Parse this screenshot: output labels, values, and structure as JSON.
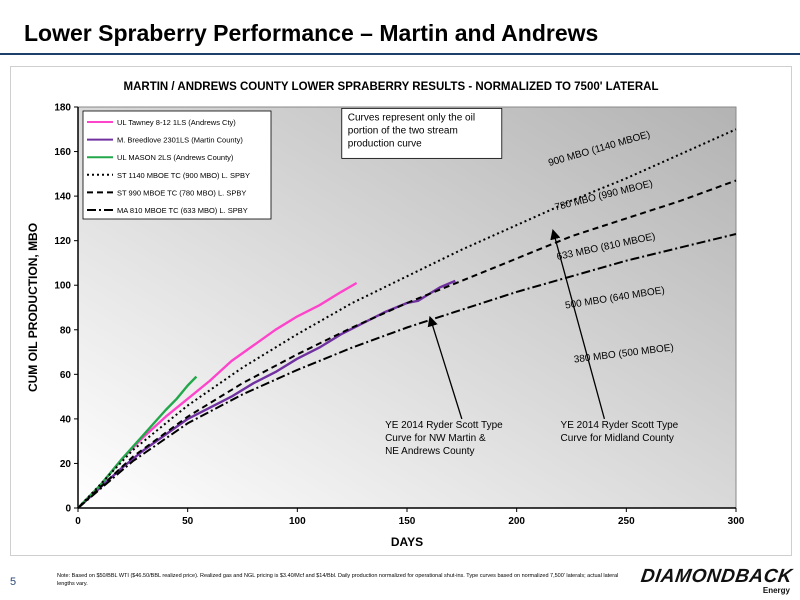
{
  "slide": {
    "title": "Lower Spraberry Performance – Martin and Andrews",
    "page_number": "5",
    "footnote": "Note: Based on $50/BBL WTI ($46.50/BBL realized price). Realized gas and NGL pricing is $3.40/Mcf and $14/Bbl. Daily production normalized for operational shut-ins. Type curves based on normalized 7,500' laterals; actual lateral lengths vary.",
    "logo_text": "DIAMONDBACK",
    "logo_sub": "Energy",
    "accent_color": "#1f3f6b"
  },
  "chart_data": {
    "type": "line",
    "title": "MARTIN / ANDREWS COUNTY LOWER SPRABERRY RESULTS - NORMALIZED TO 7500' LATERAL",
    "xlabel": "DAYS",
    "ylabel": "CUM OIL PRODUCTION, MBO",
    "xlim": [
      0,
      300
    ],
    "ylim": [
      0,
      180
    ],
    "xticks": [
      0,
      50,
      100,
      150,
      200,
      250,
      300
    ],
    "yticks": [
      0,
      20,
      40,
      60,
      80,
      100,
      120,
      140,
      160,
      180
    ],
    "grid": false,
    "plot_background": "gradient gray",
    "legend_position": "top-left",
    "series": [
      {
        "name": "UL Tawney 8-12 1LS (Andrews Cty)",
        "color": "#ff44cc",
        "style": "solid",
        "x": [
          0,
          10,
          20,
          30,
          40,
          50,
          60,
          70,
          80,
          90,
          100,
          110,
          120,
          127
        ],
        "y": [
          0,
          10,
          22,
          32,
          41,
          49,
          57,
          66,
          73,
          80,
          86,
          91,
          97,
          101
        ]
      },
      {
        "name": "M. Breedlove 2301LS (Martin County)",
        "color": "#7030a0",
        "style": "solid",
        "x": [
          0,
          10,
          20,
          30,
          40,
          50,
          60,
          70,
          80,
          90,
          100,
          110,
          120,
          130,
          140,
          150,
          155,
          160,
          165,
          172
        ],
        "y": [
          0,
          9,
          18,
          26,
          33,
          40,
          45,
          50,
          56,
          61,
          67,
          72,
          78,
          83,
          88,
          92,
          93,
          96,
          99,
          102
        ]
      },
      {
        "name": "UL MASON 2LS (Andrews County)",
        "color": "#22a84a",
        "style": "solid",
        "x": [
          0,
          10,
          20,
          30,
          40,
          45,
          50,
          54
        ],
        "y": [
          0,
          10,
          22,
          33,
          44,
          49,
          55,
          59
        ]
      },
      {
        "name": "ST 1140 MBOE TC (900 MBO) L. SPBY",
        "color": "#000000",
        "style": "dotted",
        "x": [
          0,
          25,
          50,
          75,
          100,
          125,
          150,
          175,
          200,
          225,
          250,
          275,
          300
        ],
        "y": [
          0,
          26,
          46,
          63,
          78,
          92,
          104,
          116,
          127,
          138,
          148,
          159,
          170
        ]
      },
      {
        "name": "ST 990 MBOE TC (780 MBO) L. SPBY",
        "color": "#000000",
        "style": "dashed",
        "x": [
          0,
          25,
          50,
          75,
          100,
          125,
          150,
          175,
          200,
          225,
          250,
          275,
          300
        ],
        "y": [
          0,
          23,
          41,
          56,
          69,
          81,
          92,
          102,
          112,
          122,
          130,
          138,
          147
        ]
      },
      {
        "name": "MA 810 MBOE TC (633 MBO) L. SPBY",
        "color": "#000000",
        "style": "dashdot",
        "x": [
          0,
          25,
          50,
          75,
          100,
          125,
          150,
          175,
          200,
          225,
          250,
          275,
          300
        ],
        "y": [
          0,
          21,
          38,
          51,
          62,
          72,
          81,
          89,
          97,
          104,
          111,
          117,
          123
        ]
      }
    ],
    "curve_labels": [
      {
        "text": "900 MBO (1140 MBOE)",
        "x": 238,
        "y": 160,
        "angle": -16
      },
      {
        "text": "780 MBO (990 MBOE)",
        "x": 240,
        "y": 139,
        "angle": -14
      },
      {
        "text": "633 MBO (810 MBOE)",
        "x": 241,
        "y": 116,
        "angle": -12
      },
      {
        "text": "500 MBO (640 MBOE)",
        "x": 245,
        "y": 93,
        "angle": -9
      },
      {
        "text": "380 MBO (500 MBOE)",
        "x": 249,
        "y": 68,
        "angle": -7
      }
    ],
    "annotations": [
      {
        "text": [
          "Curves represent only the oil",
          "portion of the two stream",
          "production curve"
        ],
        "x": 123,
        "y": 174,
        "boxed": true
      },
      {
        "text": [
          "YE 2014 Ryder Scott Type",
          "Curve for NW Martin &",
          "NE Andrews  County"
        ],
        "x": 140,
        "y": 36,
        "arrow_from": [
          175,
          40
        ],
        "arrow_to": [
          161,
          84
        ]
      },
      {
        "text": [
          "YE 2014 Ryder Scott Type",
          "Curve for Midland County"
        ],
        "x": 220,
        "y": 36,
        "arrow_from": [
          240,
          40
        ],
        "arrow_to": [
          217,
          123
        ]
      }
    ]
  }
}
